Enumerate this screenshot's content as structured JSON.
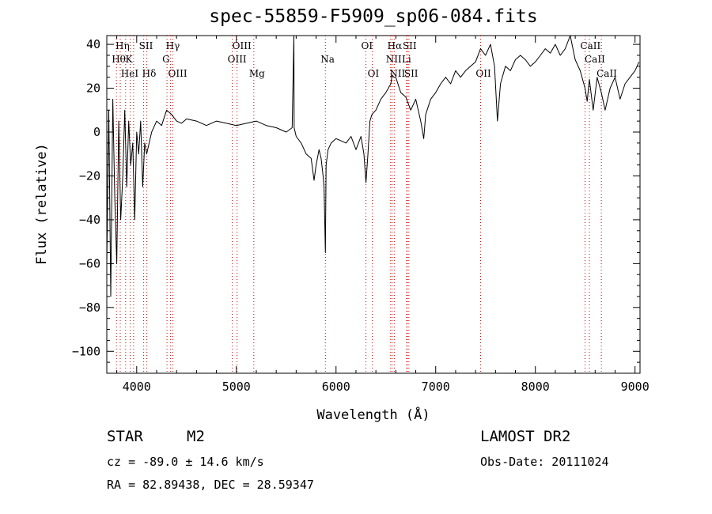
{
  "chart_data": {
    "type": "line",
    "title": "spec-55859-F5909_sp06-084.fits",
    "xlabel": "Wavelength (Å)",
    "ylabel": "Flux (relative)",
    "xlim": [
      3700,
      9050
    ],
    "ylim": [
      -110,
      44
    ],
    "xticks": [
      4000,
      5000,
      6000,
      7000,
      8000,
      9000
    ],
    "yticks": [
      -100,
      -80,
      -60,
      -40,
      -20,
      0,
      20,
      40
    ],
    "grid": false,
    "line_color": "#000000",
    "marker_line_color": "#cc0000",
    "series": [
      {
        "x": [
          3700,
          3720,
          3740,
          3760,
          3780,
          3800,
          3820,
          3840,
          3860,
          3880,
          3900,
          3920,
          3940,
          3960,
          3980,
          4000,
          4020,
          4040,
          4060,
          4080,
          4100,
          4150,
          4200,
          4250,
          4300,
          4350,
          4400,
          4450,
          4500,
          4600,
          4700,
          4800,
          4900,
          5000,
          5100,
          5200,
          5300,
          5400,
          5500,
          5560,
          5577,
          5580,
          5600,
          5650,
          5700,
          5750,
          5780,
          5800,
          5830,
          5850,
          5870,
          5880,
          5893,
          5900,
          5920,
          5950,
          6000,
          6050,
          6100,
          6150,
          6200,
          6250,
          6280,
          6300,
          6320,
          6340,
          6360,
          6400,
          6450,
          6500,
          6550,
          6563,
          6580,
          6600,
          6650,
          6700,
          6750,
          6800,
          6850,
          6880,
          6900,
          6950,
          7000,
          7050,
          7100,
          7150,
          7200,
          7250,
          7300,
          7350,
          7400,
          7450,
          7500,
          7550,
          7590,
          7620,
          7650,
          7700,
          7750,
          7800,
          7850,
          7900,
          7950,
          8000,
          8050,
          8100,
          8150,
          8200,
          8250,
          8300,
          8350,
          8400,
          8450,
          8498,
          8520,
          8542,
          8580,
          8620,
          8662,
          8700,
          8750,
          8800,
          8850,
          8900,
          8950,
          9000,
          9040
        ],
        "y": [
          -60,
          10,
          -75,
          15,
          -30,
          -60,
          5,
          -40,
          -20,
          10,
          -25,
          5,
          -15,
          -5,
          -40,
          0,
          -10,
          5,
          -25,
          -5,
          -10,
          0,
          5,
          3,
          10,
          8,
          5,
          4,
          6,
          5,
          3,
          5,
          4,
          3,
          4,
          5,
          3,
          2,
          0,
          2,
          44,
          2,
          -2,
          -5,
          -10,
          -12,
          -22,
          -15,
          -8,
          -12,
          -20,
          -25,
          -55,
          -15,
          -8,
          -5,
          -3,
          -4,
          -5,
          -2,
          -8,
          -2,
          -10,
          -23,
          -10,
          5,
          8,
          10,
          15,
          18,
          22,
          26,
          25,
          25,
          18,
          16,
          10,
          15,
          5,
          -3,
          8,
          15,
          18,
          22,
          25,
          22,
          28,
          25,
          28,
          30,
          32,
          38,
          35,
          40,
          30,
          5,
          22,
          30,
          28,
          33,
          35,
          33,
          30,
          32,
          35,
          38,
          36,
          40,
          35,
          38,
          44,
          33,
          28,
          20,
          14,
          24,
          10,
          25,
          18,
          10,
          20,
          25,
          15,
          22,
          25,
          28,
          32
        ]
      }
    ],
    "line_labels": [
      {
        "text": "Hη",
        "x": 3835,
        "row": 1
      },
      {
        "text": "Hθ",
        "x": 3797,
        "row": 2
      },
      {
        "text": "HeI",
        "x": 3889,
        "row": 3
      },
      {
        "text": "SII",
        "x": 4070,
        "row": 1
      },
      {
        "text": "K",
        "x": 3934,
        "row": 2
      },
      {
        "text": "Hδ",
        "x": 4102,
        "row": 3
      },
      {
        "text": "Hγ",
        "x": 4340,
        "row": 1
      },
      {
        "text": "G",
        "x": 4304,
        "row": 2
      },
      {
        "text": "OIII",
        "x": 4363,
        "row": 3
      },
      {
        "text": "OIII",
        "x": 5007,
        "row": 1
      },
      {
        "text": "OIII",
        "x": 4959,
        "row": 2
      },
      {
        "text": "Mg",
        "x": 5175,
        "row": 3
      },
      {
        "text": "Na",
        "x": 5893,
        "row": 2
      },
      {
        "text": "OI",
        "x": 6300,
        "row": 1
      },
      {
        "text": "OI",
        "x": 6364,
        "row": 3
      },
      {
        "text": "Hα",
        "x": 6563,
        "row": 1
      },
      {
        "text": "SII",
        "x": 6716,
        "row": 1
      },
      {
        "text": "NII",
        "x": 6548,
        "row": 2
      },
      {
        "text": "Li",
        "x": 6708,
        "row": 2
      },
      {
        "text": "NII",
        "x": 6584,
        "row": 3
      },
      {
        "text": "SII",
        "x": 6731,
        "row": 3
      },
      {
        "text": "OII",
        "x": 7450,
        "row": 3
      },
      {
        "text": "CaII",
        "x": 8498,
        "row": 1
      },
      {
        "text": "CaII",
        "x": 8542,
        "row": 2
      },
      {
        "text": "CaII",
        "x": 8662,
        "row": 3
      }
    ],
    "marker_lines": [
      3797,
      3835,
      3889,
      3934,
      3969,
      4070,
      4102,
      4304,
      4340,
      4363,
      4959,
      5007,
      5175,
      5893,
      6300,
      6364,
      6548,
      6563,
      6584,
      6708,
      6716,
      6731,
      7450,
      8498,
      8542,
      8662
    ]
  },
  "info": {
    "object_class": "STAR",
    "object_subclass": "M2",
    "survey": "LAMOST DR2",
    "cz": "cz = -89.0 ± 14.6 km/s",
    "obs_date": "Obs-Date: 20111024",
    "radec": "RA =  82.89438, DEC =  28.59347"
  }
}
